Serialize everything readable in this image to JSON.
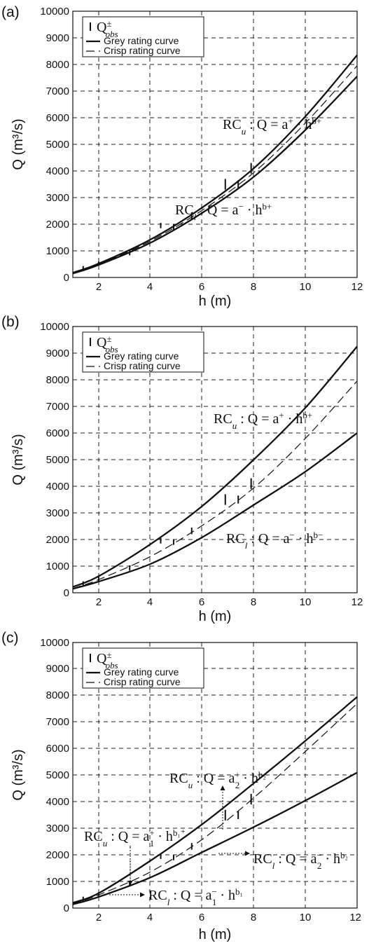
{
  "chart_data": [
    {
      "panel": "(a)",
      "type": "line",
      "xlabel": "h (m)",
      "ylabel": "Q (m³/s)",
      "xlim": [
        1,
        12
      ],
      "ylim": [
        0,
        10000
      ],
      "xticks": [
        2,
        4,
        6,
        8,
        10,
        12
      ],
      "yticks": [
        0,
        1000,
        2000,
        3000,
        4000,
        5000,
        6000,
        7000,
        8000,
        9000,
        10000
      ],
      "grid": true,
      "legend": {
        "placement": "top-left",
        "entries": [
          "Q_obs^±",
          "Grey rating curve",
          "Crisp rating curve"
        ]
      },
      "series": [
        {
          "role": "upper",
          "x": [
            1,
            2,
            4,
            6,
            8,
            10,
            12
          ],
          "y": [
            180,
            520,
            1420,
            2620,
            4100,
            6050,
            8350
          ]
        },
        {
          "role": "lower",
          "x": [
            1,
            2,
            4,
            6,
            8,
            10,
            12
          ],
          "y": [
            150,
            470,
            1300,
            2420,
            3780,
            5540,
            7550
          ]
        },
        {
          "role": "crisp",
          "x": [
            1,
            2,
            4,
            6,
            8,
            10,
            12
          ],
          "y": [
            165,
            495,
            1360,
            2520,
            3940,
            5800,
            7950
          ]
        }
      ],
      "observations": [
        {
          "h": 1.4,
          "lo": 270,
          "hi": 430
        },
        {
          "h": 2.0,
          "lo": 450,
          "hi": 600
        },
        {
          "h": 3.2,
          "lo": 830,
          "hi": 1030
        },
        {
          "h": 4.4,
          "lo": 1850,
          "hi": 2050
        },
        {
          "h": 4.9,
          "lo": 1800,
          "hi": 2000
        },
        {
          "h": 5.6,
          "lo": 2200,
          "hi": 2450
        },
        {
          "h": 6.9,
          "lo": 3300,
          "hi": 3700
        },
        {
          "h": 7.4,
          "lo": 3350,
          "hi": 3650
        },
        {
          "h": 7.9,
          "lo": 3900,
          "hi": 4300
        }
      ],
      "annotations": [
        {
          "text": "RC_u : Q = a⁺ · h^(b⁺)",
          "x": 7.9,
          "y": 5700
        },
        {
          "text": "RC_l : Q = a⁻ · h^(b⁺)",
          "x": 6.3,
          "y": 2150
        }
      ]
    },
    {
      "panel": "(b)",
      "type": "line",
      "xlabel": "h (m)",
      "ylabel": "Q (m³/s)",
      "xlim": [
        1,
        12
      ],
      "ylim": [
        0,
        10000
      ],
      "xticks": [
        2,
        4,
        6,
        8,
        10,
        12
      ],
      "yticks": [
        0,
        1000,
        2000,
        3000,
        4000,
        5000,
        6000,
        7000,
        8000,
        9000,
        10000
      ],
      "grid": true,
      "legend": {
        "placement": "top-left",
        "entries": [
          "Q_obs^±",
          "Grey rating curve",
          "Crisp rating curve"
        ]
      },
      "series": [
        {
          "role": "upper",
          "x": [
            1,
            2,
            4,
            6,
            8,
            10,
            12
          ],
          "y": [
            220,
            620,
            1820,
            3250,
            5000,
            6950,
            9250
          ]
        },
        {
          "role": "lower",
          "x": [
            1,
            2,
            4,
            6,
            8,
            10,
            12
          ],
          "y": [
            150,
            420,
            1080,
            2080,
            3300,
            4550,
            6000
          ]
        },
        {
          "role": "crisp",
          "x": [
            1,
            2,
            4,
            6,
            8,
            10,
            12
          ],
          "y": [
            165,
            495,
            1360,
            2520,
            3940,
            5800,
            7950
          ]
        }
      ],
      "observations": [
        {
          "h": 1.4,
          "lo": 270,
          "hi": 430
        },
        {
          "h": 2.0,
          "lo": 450,
          "hi": 600
        },
        {
          "h": 3.2,
          "lo": 830,
          "hi": 1030
        },
        {
          "h": 4.4,
          "lo": 1850,
          "hi": 2050
        },
        {
          "h": 4.9,
          "lo": 1800,
          "hi": 2000
        },
        {
          "h": 5.6,
          "lo": 2200,
          "hi": 2450
        },
        {
          "h": 6.9,
          "lo": 3300,
          "hi": 3700
        },
        {
          "h": 7.4,
          "lo": 3350,
          "hi": 3650
        },
        {
          "h": 7.9,
          "lo": 3900,
          "hi": 4300
        }
      ],
      "annotations": [
        {
          "text": "RC_u : Q = a⁺ · h^(b⁺)",
          "x": 6.7,
          "y": 6800
        },
        {
          "text": "RC_l : Q = a⁻ · h^(b⁻)",
          "x": 7.7,
          "y": 2050
        }
      ]
    },
    {
      "panel": "(c)",
      "type": "line",
      "xlabel": "h (m)",
      "ylabel": "Q (m³/s)",
      "xlim": [
        1,
        12
      ],
      "ylim": [
        0,
        10000
      ],
      "xticks": [
        2,
        4,
        6,
        8,
        10,
        12
      ],
      "yticks": [
        0,
        1000,
        2000,
        3000,
        4000,
        5000,
        6000,
        7000,
        8000,
        9000,
        10000
      ],
      "grid": true,
      "legend": {
        "placement": "top-left",
        "entries": [
          "Q_obs^±",
          "Grey rating curve",
          "Crisp rating curve"
        ]
      },
      "series": [
        {
          "role": "upper",
          "x": [
            1,
            2,
            4,
            6,
            8,
            10,
            12
          ],
          "y": [
            200,
            560,
            1780,
            3150,
            4700,
            6300,
            7950
          ]
        },
        {
          "role": "lower",
          "x": [
            1,
            2,
            4,
            6,
            8,
            10,
            12
          ],
          "y": [
            140,
            420,
            1150,
            2100,
            3050,
            4050,
            5100
          ]
        },
        {
          "role": "crisp",
          "x": [
            1,
            2,
            4,
            6,
            8,
            10,
            12
          ],
          "y": [
            165,
            495,
            1360,
            2580,
            4150,
            5900,
            7700
          ]
        }
      ],
      "observations": [
        {
          "h": 1.4,
          "lo": 270,
          "hi": 430
        },
        {
          "h": 2.0,
          "lo": 450,
          "hi": 600
        },
        {
          "h": 3.2,
          "lo": 830,
          "hi": 1030
        },
        {
          "h": 4.4,
          "lo": 1850,
          "hi": 2050
        },
        {
          "h": 4.9,
          "lo": 1800,
          "hi": 2000
        },
        {
          "h": 5.6,
          "lo": 2200,
          "hi": 2450
        },
        {
          "h": 6.9,
          "lo": 3300,
          "hi": 3700
        },
        {
          "h": 7.4,
          "lo": 3350,
          "hi": 3650
        },
        {
          "h": 7.9,
          "lo": 3900,
          "hi": 4300
        }
      ],
      "annotations": [
        {
          "text": "RC_u : Q = a₂⁺ · h^(b₂⁺)",
          "x": 4.9,
          "y": 5600
        },
        {
          "text": "RC_u : Q = a₁⁺ · h^(b₁⁺)",
          "x": 1.7,
          "y": 3250
        },
        {
          "text": "RC_l : Q = a₂⁻ · h^(b₂⁻)",
          "x": 8.5,
          "y": 2050
        },
        {
          "text": "RC_l : Q = a₁⁻ · h^(b₁⁻)",
          "x": 3.9,
          "y": 200
        }
      ]
    }
  ]
}
